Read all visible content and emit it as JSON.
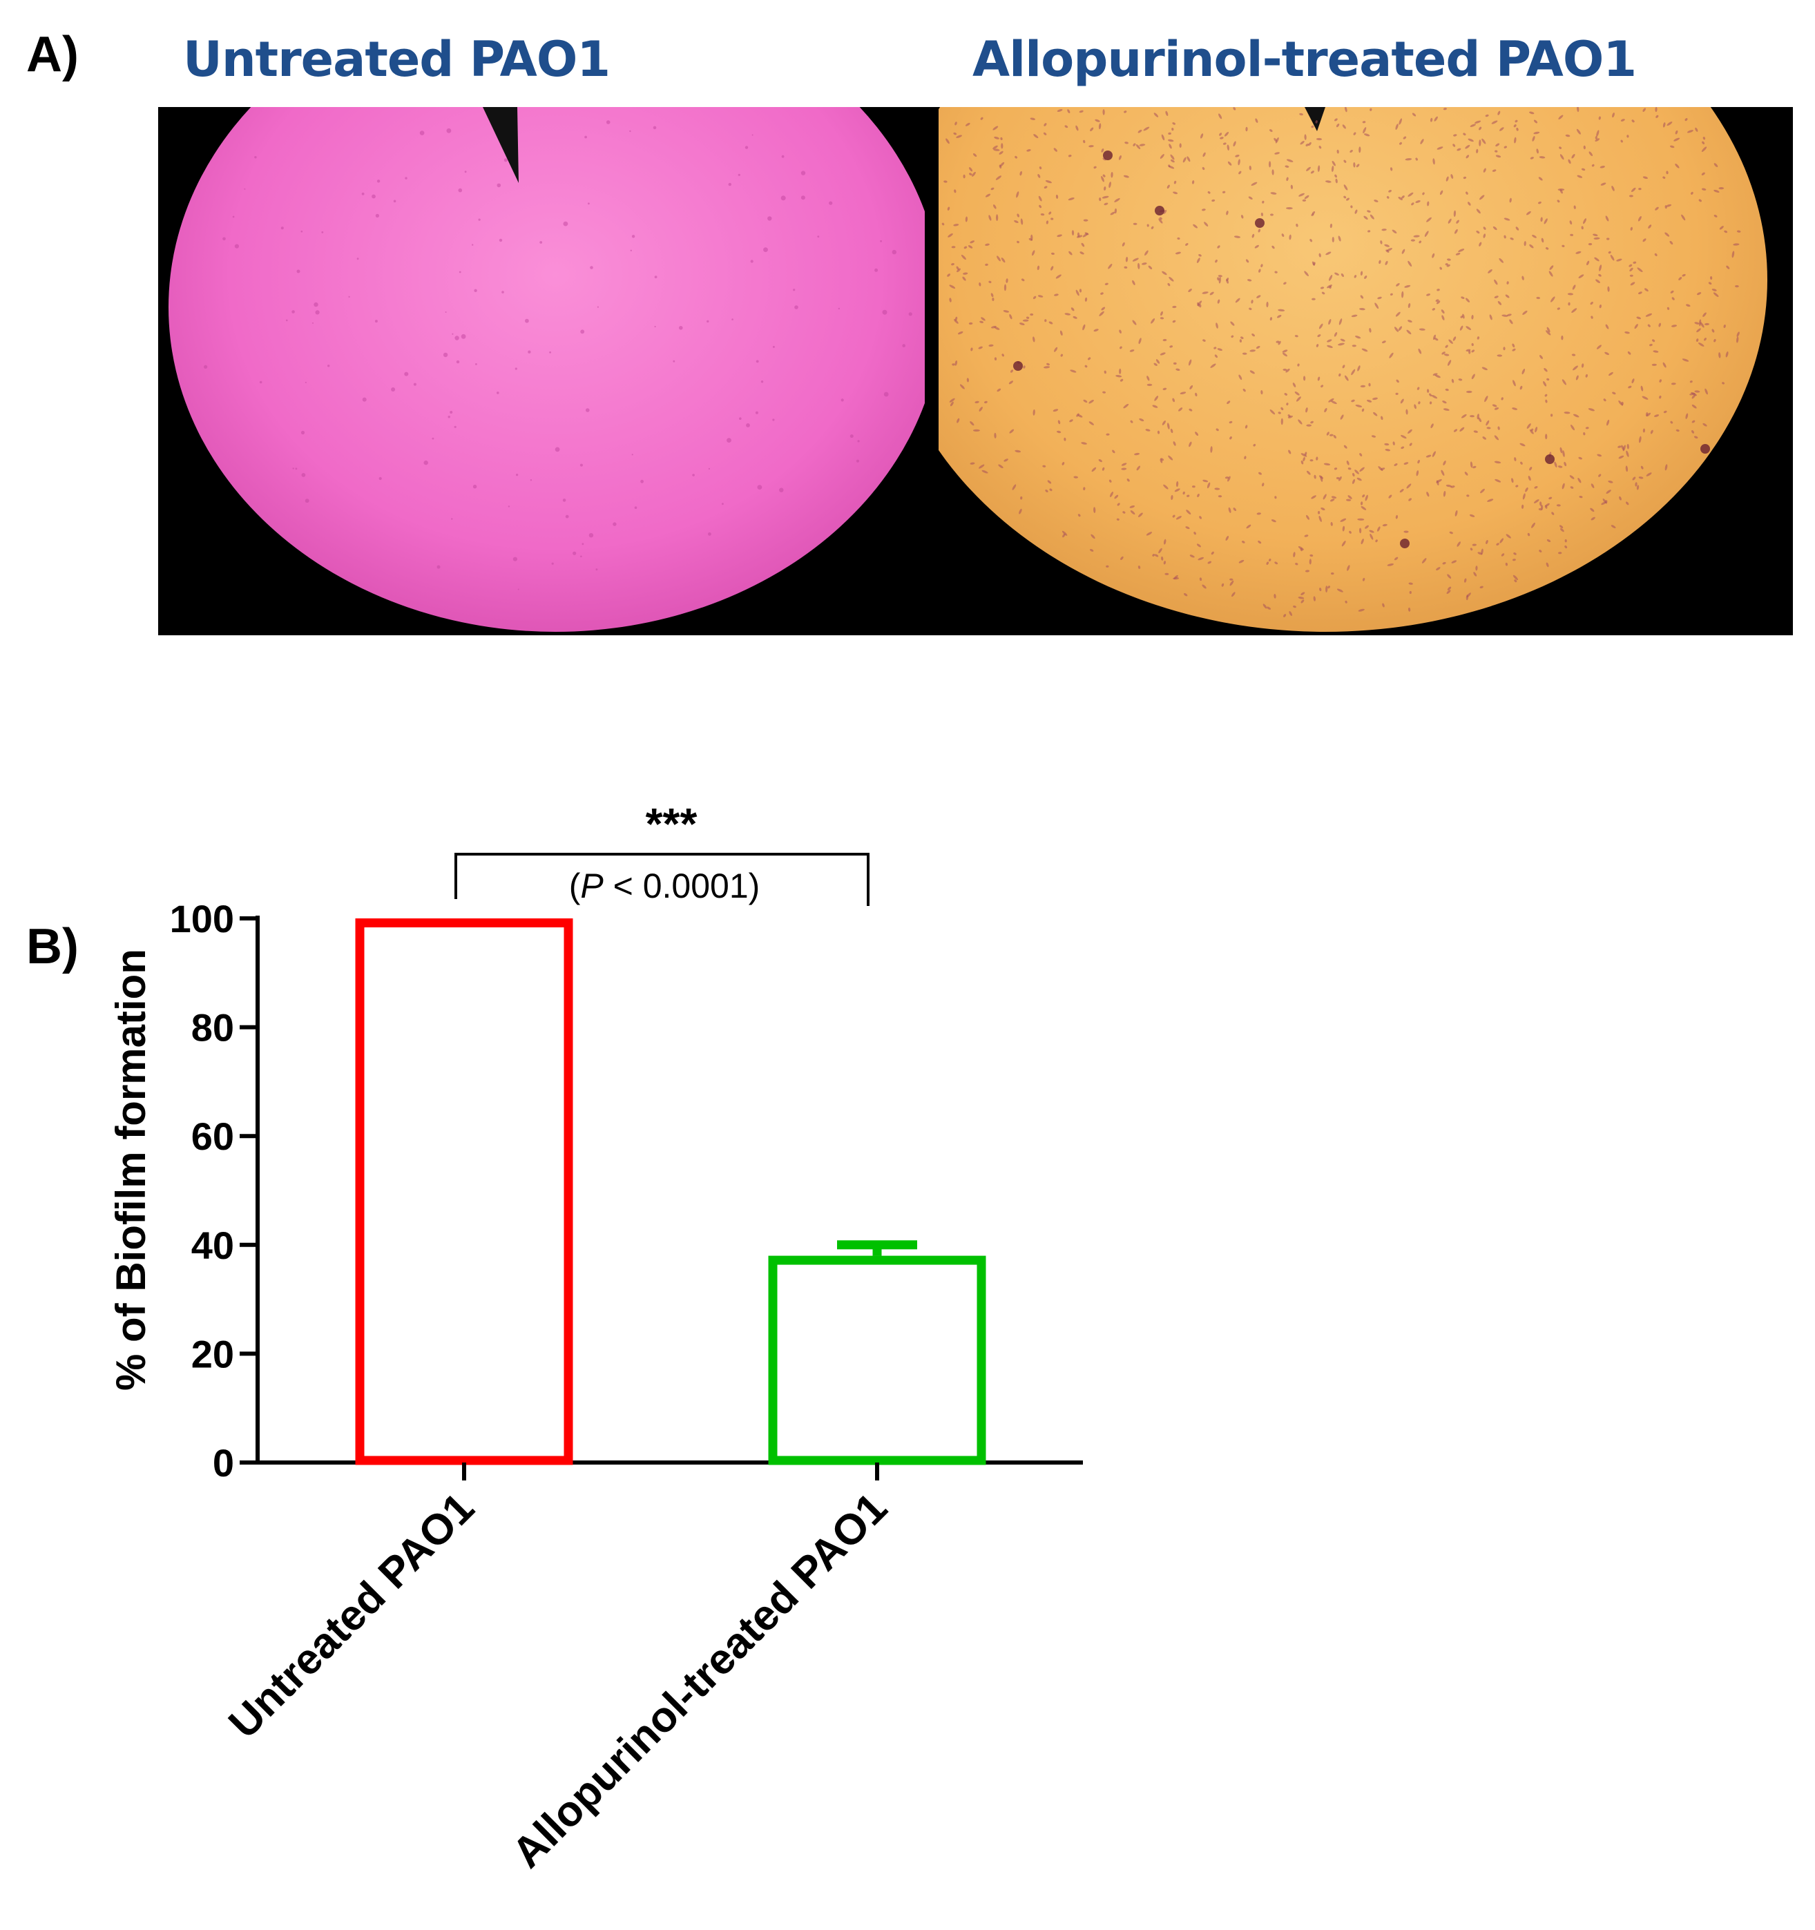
{
  "panels": {
    "a_label": "A)",
    "b_label": "B)"
  },
  "micrographs": {
    "left_title": "Untreated PAO1",
    "right_title": "Allopurinol-treated PAO1",
    "title_color": "#1f4e8c",
    "left_stain_color": "#f06ac8",
    "right_stain_color": "#f5b75a"
  },
  "significance": {
    "stars": "***",
    "p_italic": "P",
    "p_rest": " < 0.0001)",
    "p_open": "("
  },
  "chart_data": {
    "type": "bar",
    "categories": [
      "Untreated PAO1",
      "Allopurinol-treated PAO1"
    ],
    "values": [
      100,
      38
    ],
    "error": [
      0,
      2
    ],
    "colors": [
      "#ff0000",
      "#00c000"
    ],
    "ylabel": "% of Biofilm formation",
    "xlabel": "",
    "ylim": [
      0,
      100
    ],
    "yticks": [
      0,
      20,
      40,
      60,
      80,
      100
    ],
    "grid": false,
    "fill": "none"
  }
}
